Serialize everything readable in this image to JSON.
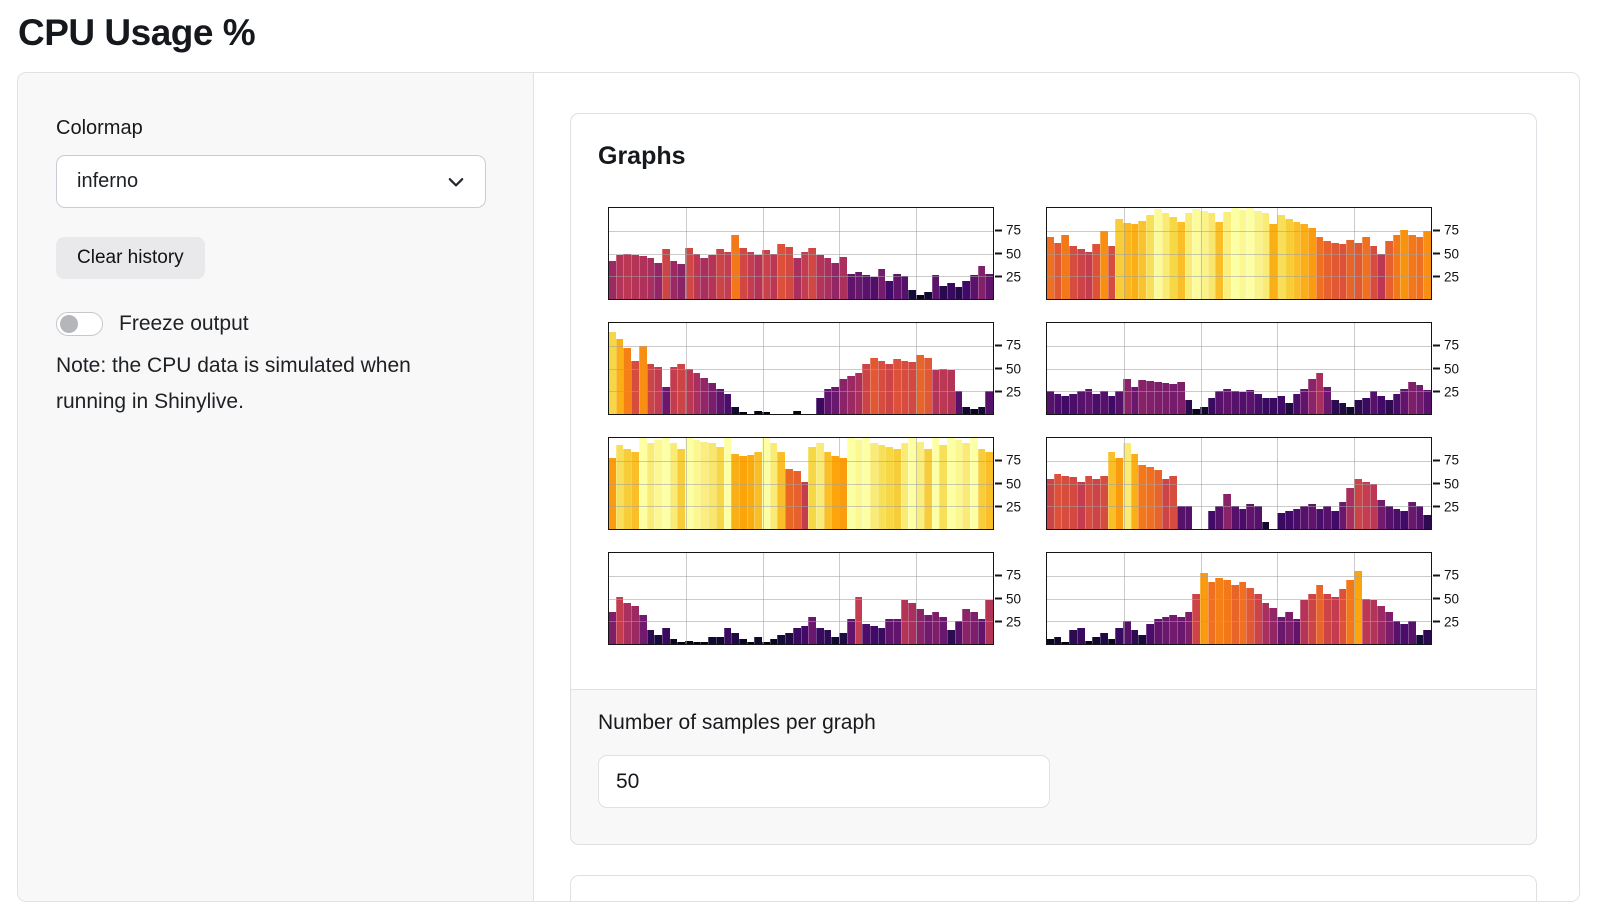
{
  "page": {
    "title": "CPU Usage %"
  },
  "sidebar": {
    "colormap_label": "Colormap",
    "colormap_value": "inferno",
    "clear_button_label": "Clear history",
    "freeze_label": "Freeze output",
    "freeze_state": "off",
    "note_text": "Note: the CPU data is simulated when running in Shinylive."
  },
  "main": {
    "card_title": "Graphs",
    "samples_label": "Number of samples per graph",
    "samples_value": "50"
  },
  "colors": {
    "sidebar_bg": "#f8f8f8",
    "border": "#dee2e6",
    "button_bg": "#e9e9ec",
    "toggle_knob": "#b4b6ba",
    "chart_spine": "#151515",
    "gridline": "#b0b0b0"
  },
  "chart_data": {
    "type": "bar",
    "title": "Graphs",
    "xlabel": "",
    "ylabel": "",
    "ylim": [
      0,
      100
    ],
    "yticks": [
      25,
      50,
      75
    ],
    "ytick_side": "right",
    "grid": true,
    "x_gridlines_pct": [
      20,
      40,
      60,
      80
    ],
    "samples_per_graph": 50,
    "colormap": "inferno",
    "colormap_anchors": {
      "0.0": "#000004",
      "0.1": "#160b39",
      "0.2": "#420a68",
      "0.3": "#6a176e",
      "0.4": "#932667",
      "0.5": "#bc3754",
      "0.6": "#dd513a",
      "0.7": "#f37819",
      "0.8": "#fca50a",
      "0.9": "#f6d746",
      "1.0": "#fcffa4"
    },
    "series": [
      {
        "name": "cpu-graph-1",
        "values": [
          42,
          48,
          50,
          48,
          47,
          45,
          40,
          55,
          42,
          38,
          56,
          50,
          45,
          48,
          55,
          52,
          70,
          56,
          52,
          48,
          54,
          50,
          60,
          57,
          45,
          52,
          56,
          48,
          45,
          40,
          46,
          28,
          30,
          26,
          24,
          33,
          20,
          28,
          25,
          10,
          4,
          8,
          26,
          14,
          18,
          13,
          20,
          26,
          36,
          28
        ]
      },
      {
        "name": "cpu-graph-2",
        "values": [
          68,
          62,
          70,
          58,
          55,
          52,
          60,
          75,
          58,
          88,
          84,
          82,
          86,
          92,
          99,
          95,
          90,
          85,
          95,
          99,
          97,
          94,
          85,
          96,
          100,
          98,
          100,
          97,
          95,
          82,
          92,
          88,
          85,
          82,
          78,
          68,
          64,
          62,
          60,
          65,
          62,
          68,
          58,
          50,
          64,
          70,
          76,
          70,
          68,
          75
        ]
      },
      {
        "name": "cpu-graph-3",
        "values": [
          90,
          82,
          72,
          58,
          75,
          55,
          52,
          30,
          52,
          55,
          50,
          45,
          40,
          34,
          28,
          22,
          8,
          2,
          0,
          3,
          2,
          0,
          0,
          0,
          3,
          0,
          0,
          18,
          28,
          30,
          38,
          42,
          45,
          55,
          62,
          58,
          55,
          60,
          58,
          57,
          65,
          62,
          48,
          50,
          48,
          25,
          8,
          5,
          8,
          25
        ]
      },
      {
        "name": "cpu-graph-4",
        "values": [
          25,
          22,
          20,
          22,
          25,
          28,
          22,
          25,
          20,
          25,
          38,
          30,
          37,
          36,
          35,
          34,
          33,
          35,
          15,
          5,
          8,
          18,
          25,
          28,
          25,
          24,
          26,
          22,
          18,
          18,
          20,
          12,
          22,
          28,
          38,
          45,
          30,
          15,
          12,
          8,
          15,
          18,
          25,
          20,
          15,
          22,
          28,
          35,
          32,
          26
        ]
      },
      {
        "name": "cpu-graph-5",
        "values": [
          78,
          92,
          88,
          85,
          100,
          95,
          98,
          100,
          95,
          88,
          100,
          98,
          96,
          94,
          90,
          100,
          82,
          80,
          81,
          85,
          100,
          95,
          85,
          66,
          64,
          52,
          90,
          95,
          85,
          80,
          78,
          100,
          98,
          100,
          95,
          92,
          90,
          88,
          95,
          100,
          96,
          88,
          100,
          92,
          100,
          98,
          95,
          100,
          88,
          85
        ]
      },
      {
        "name": "cpu-graph-6",
        "values": [
          55,
          60,
          58,
          57,
          52,
          58,
          55,
          58,
          85,
          78,
          95,
          82,
          70,
          68,
          65,
          55,
          58,
          25,
          25,
          0,
          0,
          20,
          25,
          38,
          25,
          22,
          28,
          25,
          8,
          0,
          18,
          20,
          22,
          25,
          28,
          22,
          25,
          20,
          30,
          45,
          55,
          52,
          50,
          32,
          25,
          22,
          20,
          30,
          25,
          15
        ]
      },
      {
        "name": "cpu-graph-7",
        "values": [
          35,
          52,
          45,
          42,
          32,
          15,
          10,
          18,
          5,
          2,
          3,
          2,
          2,
          8,
          8,
          18,
          12,
          5,
          2,
          8,
          2,
          5,
          10,
          12,
          18,
          20,
          30,
          18,
          15,
          8,
          12,
          28,
          52,
          22,
          20,
          18,
          28,
          28,
          48,
          45,
          38,
          32,
          35,
          30,
          15,
          25,
          38,
          35,
          28,
          48
        ]
      },
      {
        "name": "cpu-graph-8",
        "values": [
          5,
          8,
          2,
          15,
          18,
          3,
          8,
          12,
          5,
          18,
          25,
          15,
          10,
          22,
          28,
          30,
          32,
          30,
          35,
          55,
          78,
          68,
          72,
          70,
          65,
          68,
          62,
          55,
          45,
          40,
          30,
          35,
          28,
          48,
          55,
          65,
          55,
          52,
          60,
          70,
          80,
          50,
          48,
          42,
          35,
          25,
          22,
          25,
          10,
          15
        ]
      }
    ]
  }
}
